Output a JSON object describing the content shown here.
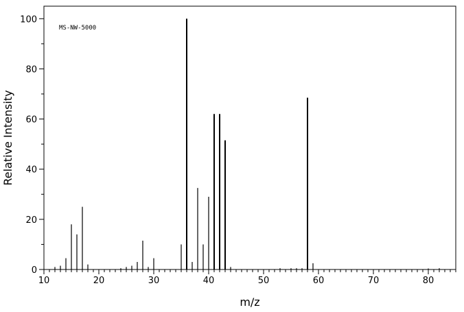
{
  "chart_data": {
    "type": "bar",
    "annotation": "MS-NW-5000",
    "xlabel": "m/z",
    "ylabel": "Relative Intensity",
    "xlim": [
      10,
      85
    ],
    "ylim": [
      0,
      105
    ],
    "x_ticks": [
      10,
      20,
      30,
      40,
      50,
      60,
      70,
      80
    ],
    "y_ticks": [
      0,
      20,
      40,
      60,
      80,
      100
    ],
    "grid": false,
    "peaks": [
      {
        "mz": 12,
        "intensity": 1.0
      },
      {
        "mz": 13,
        "intensity": 1.5
      },
      {
        "mz": 14,
        "intensity": 4.5
      },
      {
        "mz": 15,
        "intensity": 18.0
      },
      {
        "mz": 16,
        "intensity": 14.0
      },
      {
        "mz": 17,
        "intensity": 25.0
      },
      {
        "mz": 18,
        "intensity": 2.0
      },
      {
        "mz": 24,
        "intensity": 0.5
      },
      {
        "mz": 25,
        "intensity": 1.0
      },
      {
        "mz": 26,
        "intensity": 1.5
      },
      {
        "mz": 27,
        "intensity": 3.0
      },
      {
        "mz": 28,
        "intensity": 11.5
      },
      {
        "mz": 29,
        "intensity": 1.0
      },
      {
        "mz": 30,
        "intensity": 4.5
      },
      {
        "mz": 35,
        "intensity": 10.0
      },
      {
        "mz": 36,
        "intensity": 100.0
      },
      {
        "mz": 37,
        "intensity": 3.0
      },
      {
        "mz": 38,
        "intensity": 32.5
      },
      {
        "mz": 39,
        "intensity": 10.0
      },
      {
        "mz": 40,
        "intensity": 29.0
      },
      {
        "mz": 41,
        "intensity": 62.0
      },
      {
        "mz": 42,
        "intensity": 62.0
      },
      {
        "mz": 43,
        "intensity": 51.5
      },
      {
        "mz": 44,
        "intensity": 1.0
      },
      {
        "mz": 53,
        "intensity": 0.5
      },
      {
        "mz": 55,
        "intensity": 0.5
      },
      {
        "mz": 56,
        "intensity": 0.5
      },
      {
        "mz": 57,
        "intensity": 0.5
      },
      {
        "mz": 58,
        "intensity": 68.5
      },
      {
        "mz": 59,
        "intensity": 2.5
      },
      {
        "mz": 80,
        "intensity": 0.3
      },
      {
        "mz": 82,
        "intensity": 0.5
      }
    ]
  }
}
